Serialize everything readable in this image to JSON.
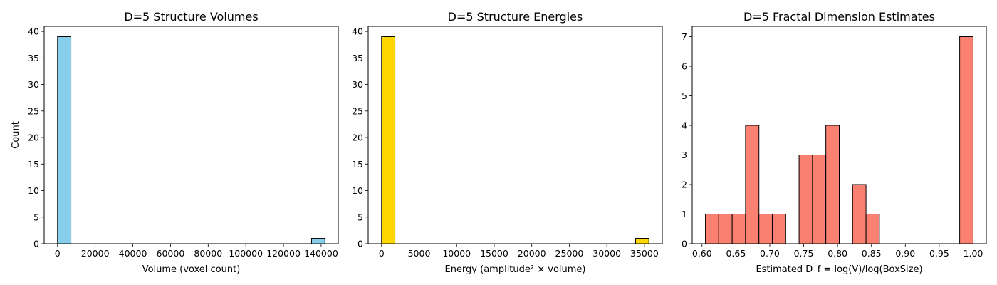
{
  "chart_data": [
    {
      "type": "bar",
      "title": "D=5 Structure Volumes",
      "xlabel": "Volume (voxel count)",
      "ylabel": "Count",
      "color": "#87ceeb",
      "xlim": [
        -7100,
        149100
      ],
      "ylim": [
        0,
        40.95
      ],
      "xticks": [
        0,
        20000,
        40000,
        60000,
        80000,
        100000,
        120000,
        140000
      ],
      "yticks": [
        0,
        5,
        10,
        15,
        20,
        25,
        30,
        35,
        40
      ],
      "bins": [
        {
          "x0": 0,
          "x1": 7100,
          "count": 39
        },
        {
          "x0": 7100,
          "x1": 14200,
          "count": 0
        },
        {
          "x0": 14200,
          "x1": 21300,
          "count": 0
        },
        {
          "x0": 21300,
          "x1": 28400,
          "count": 0
        },
        {
          "x0": 28400,
          "x1": 35500,
          "count": 0
        },
        {
          "x0": 35500,
          "x1": 42600,
          "count": 0
        },
        {
          "x0": 42600,
          "x1": 49700,
          "count": 0
        },
        {
          "x0": 49700,
          "x1": 56800,
          "count": 0
        },
        {
          "x0": 56800,
          "x1": 63900,
          "count": 0
        },
        {
          "x0": 63900,
          "x1": 71000,
          "count": 0
        },
        {
          "x0": 71000,
          "x1": 78100,
          "count": 0
        },
        {
          "x0": 78100,
          "x1": 85200,
          "count": 0
        },
        {
          "x0": 85200,
          "x1": 92300,
          "count": 0
        },
        {
          "x0": 92300,
          "x1": 99400,
          "count": 0
        },
        {
          "x0": 99400,
          "x1": 106500,
          "count": 0
        },
        {
          "x0": 106500,
          "x1": 113600,
          "count": 0
        },
        {
          "x0": 113600,
          "x1": 120700,
          "count": 0
        },
        {
          "x0": 120700,
          "x1": 127800,
          "count": 0
        },
        {
          "x0": 127800,
          "x1": 134900,
          "count": 0
        },
        {
          "x0": 134900,
          "x1": 142000,
          "count": 1
        }
      ]
    },
    {
      "type": "bar",
      "title": "D=5 Structure Energies",
      "xlabel": "Energy (amplitude² × volume)",
      "ylabel": "",
      "color": "#ffd700",
      "xlim": [
        -1780,
        37380
      ],
      "ylim": [
        0,
        40.95
      ],
      "xticks": [
        0,
        5000,
        10000,
        15000,
        20000,
        25000,
        30000,
        35000
      ],
      "yticks": [
        0,
        5,
        10,
        15,
        20,
        25,
        30,
        35,
        40
      ],
      "bins": [
        {
          "x0": 0,
          "x1": 1780,
          "count": 39
        },
        {
          "x0": 1780,
          "x1": 3560,
          "count": 0
        },
        {
          "x0": 3560,
          "x1": 5340,
          "count": 0
        },
        {
          "x0": 5340,
          "x1": 7120,
          "count": 0
        },
        {
          "x0": 7120,
          "x1": 8900,
          "count": 0
        },
        {
          "x0": 8900,
          "x1": 10680,
          "count": 0
        },
        {
          "x0": 10680,
          "x1": 12460,
          "count": 0
        },
        {
          "x0": 12460,
          "x1": 14240,
          "count": 0
        },
        {
          "x0": 14240,
          "x1": 16020,
          "count": 0
        },
        {
          "x0": 16020,
          "x1": 17800,
          "count": 0
        },
        {
          "x0": 17800,
          "x1": 19580,
          "count": 0
        },
        {
          "x0": 19580,
          "x1": 21360,
          "count": 0
        },
        {
          "x0": 21360,
          "x1": 23140,
          "count": 0
        },
        {
          "x0": 23140,
          "x1": 24920,
          "count": 0
        },
        {
          "x0": 24920,
          "x1": 26700,
          "count": 0
        },
        {
          "x0": 26700,
          "x1": 28480,
          "count": 0
        },
        {
          "x0": 28480,
          "x1": 30260,
          "count": 0
        },
        {
          "x0": 30260,
          "x1": 32040,
          "count": 0
        },
        {
          "x0": 32040,
          "x1": 33820,
          "count": 0
        },
        {
          "x0": 33820,
          "x1": 35600,
          "count": 1
        }
      ]
    },
    {
      "type": "bar",
      "title": "D=5 Fractal Dimension Estimates",
      "xlabel": "Estimated D_f = log(V)/log(BoxSize)",
      "ylabel": "",
      "color": "#fa8072",
      "xlim": [
        0.5855,
        1.0195
      ],
      "ylim": [
        0,
        7.35
      ],
      "xticks": [
        "0.60",
        "0.65",
        "0.70",
        "0.75",
        "0.80",
        "0.85",
        "0.90",
        "0.95",
        "1.00"
      ],
      "yticks": [
        0,
        1,
        2,
        3,
        4,
        5,
        6,
        7
      ],
      "bins": [
        {
          "x0": 0.605,
          "x1": 0.6247,
          "count": 1
        },
        {
          "x0": 0.6247,
          "x1": 0.6445,
          "count": 1
        },
        {
          "x0": 0.6445,
          "x1": 0.6642,
          "count": 1
        },
        {
          "x0": 0.6642,
          "x1": 0.684,
          "count": 4
        },
        {
          "x0": 0.684,
          "x1": 0.7037,
          "count": 1
        },
        {
          "x0": 0.7037,
          "x1": 0.7235,
          "count": 1
        },
        {
          "x0": 0.7235,
          "x1": 0.7432,
          "count": 0
        },
        {
          "x0": 0.7432,
          "x1": 0.763,
          "count": 3
        },
        {
          "x0": 0.763,
          "x1": 0.7827,
          "count": 3
        },
        {
          "x0": 0.7827,
          "x1": 0.8025,
          "count": 4
        },
        {
          "x0": 0.8025,
          "x1": 0.8222,
          "count": 0
        },
        {
          "x0": 0.8222,
          "x1": 0.842,
          "count": 2
        },
        {
          "x0": 0.842,
          "x1": 0.8617,
          "count": 1
        },
        {
          "x0": 0.8617,
          "x1": 0.8815,
          "count": 0
        },
        {
          "x0": 0.8815,
          "x1": 0.9012,
          "count": 0
        },
        {
          "x0": 0.9012,
          "x1": 0.921,
          "count": 0
        },
        {
          "x0": 0.921,
          "x1": 0.9407,
          "count": 0
        },
        {
          "x0": 0.9407,
          "x1": 0.9605,
          "count": 0
        },
        {
          "x0": 0.9605,
          "x1": 0.9802,
          "count": 0
        },
        {
          "x0": 0.9802,
          "x1": 1.0,
          "count": 7
        }
      ]
    }
  ]
}
